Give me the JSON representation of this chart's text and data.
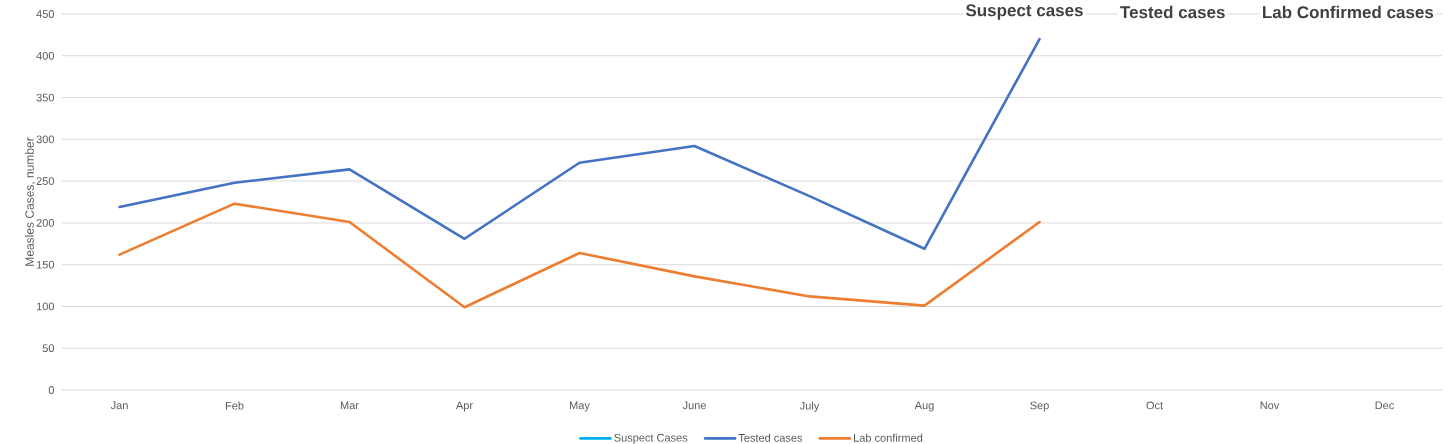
{
  "chart_data": {
    "type": "line",
    "categories": [
      "Jan",
      "Feb",
      "Mar",
      "Apr",
      "May",
      "June",
      "July",
      "Aug",
      "Sep",
      "Oct",
      "Nov",
      "Dec"
    ],
    "ylabel": "Measles  Cases, number",
    "series": [
      {
        "name": "Suspect Cases",
        "color": "#00b0f0",
        "values": [
          null,
          null,
          null,
          null,
          null,
          null,
          null,
          null,
          null,
          null,
          null,
          null
        ]
      },
      {
        "name": "Tested cases",
        "color": "#4472c4",
        "values": [
          219,
          248,
          264,
          181,
          272,
          292,
          232,
          169,
          420,
          null,
          null,
          null
        ]
      },
      {
        "name": "Lab confirmed",
        "color": "#ed7d31",
        "values": [
          162,
          223,
          201,
          99,
          164,
          136,
          112,
          101,
          201,
          null,
          null,
          null
        ]
      }
    ],
    "ylim": [
      0,
      450
    ],
    "yticks": [
      0,
      50,
      100,
      150,
      200,
      250,
      300,
      350,
      400,
      450
    ],
    "grid": "y",
    "legend": "bottom",
    "marker": "none",
    "line_style": "solid",
    "annotations": [
      "Suspect  cases",
      "Tested cases",
      "Lab Confirmed cases"
    ]
  }
}
